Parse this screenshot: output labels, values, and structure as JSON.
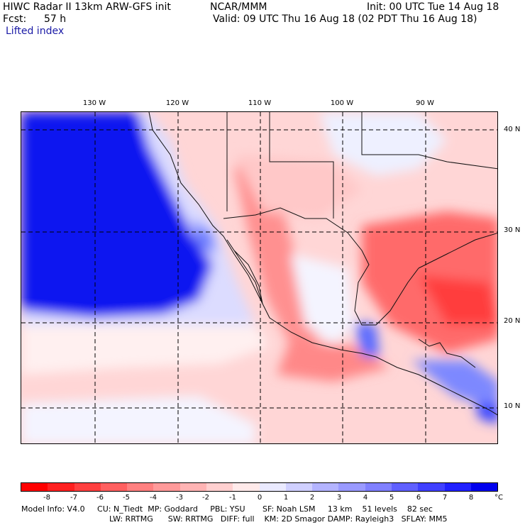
{
  "header": {
    "title": "HIWC Radar II 13km ARW-GFS init",
    "org": "NCAR/MMM",
    "init": "Init: 00 UTC Tue 14 Aug 18",
    "fcst_label": "Fcst:",
    "fcst_value": "57 h",
    "valid": "Valid: 09 UTC Thu 16 Aug 18 (02 PDT Thu 16 Aug 18)",
    "field": "Lifted index"
  },
  "map": {
    "longitude_labels": [
      "130 W",
      "120 W",
      "110 W",
      "100 W",
      "90 W"
    ],
    "latitude_labels": [
      "40 N",
      "30 N",
      "20 N",
      "10 N"
    ]
  },
  "colorbar": {
    "unit": "°C",
    "tick_labels": [
      "-8",
      "-7",
      "-6",
      "-5",
      "-4",
      "-3",
      "-2",
      "-1",
      "0",
      "1",
      "2",
      "3",
      "4",
      "5",
      "6",
      "7",
      "8"
    ],
    "colors": [
      "#ff0000",
      "#ff2020",
      "#ff4040",
      "#ff6060",
      "#ff8080",
      "#ff9a9a",
      "#ffb4b4",
      "#ffd0d0",
      "#ffeaea",
      "#eaeaff",
      "#d0d0ff",
      "#b4b4ff",
      "#9a9aff",
      "#8080ff",
      "#6060ff",
      "#4040ff",
      "#2020ff",
      "#0000ee"
    ]
  },
  "model_info": {
    "line1": "Model Info: V4.0     CU: N_Tiedt  MP: Goddard     PBL: YSU       SF: Noah LSM     13 km    51 levels    82 sec",
    "line2": "LW: RRTMG      SW: RRTMG   DIFF: full    KM: 2D Smagor DAMP: Rayleigh3   SFLAY: MM5"
  }
}
